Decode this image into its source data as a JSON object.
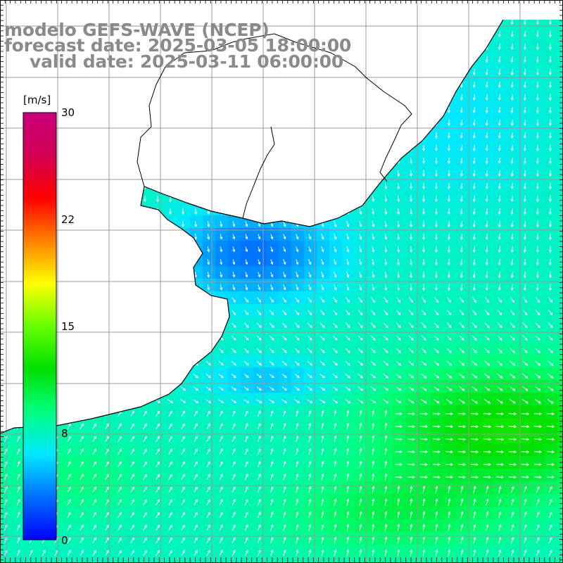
{
  "titles": {
    "model": "modelo GEFS-WAVE (NCEP)",
    "forecast": "forecast date: 2025-03-05 18:00:00",
    "valid": "valid date: 2025-03-11 06:00:00"
  },
  "colorbar": {
    "unit": "[m/s]",
    "min": 0,
    "max": 30,
    "ticks": [
      {
        "value": 30,
        "label": "30"
      },
      {
        "value": 22,
        "label": "22"
      },
      {
        "value": 15,
        "label": "15"
      },
      {
        "value": 8,
        "label": "8"
      },
      {
        "value": 0,
        "label": "0"
      }
    ],
    "colors": [
      "#0000ff",
      "#0070ff",
      "#00e8ff",
      "#00ff7f",
      "#00e000",
      "#66ff00",
      "#ffff00",
      "#ff8000",
      "#ff0000",
      "#d40054",
      "#c8007a"
    ]
  },
  "map": {
    "land_color": "#ffffff",
    "graticule_color": "#9a9a9a",
    "coast_color": "#000000",
    "arrow_color": "#ffffff"
  }
}
